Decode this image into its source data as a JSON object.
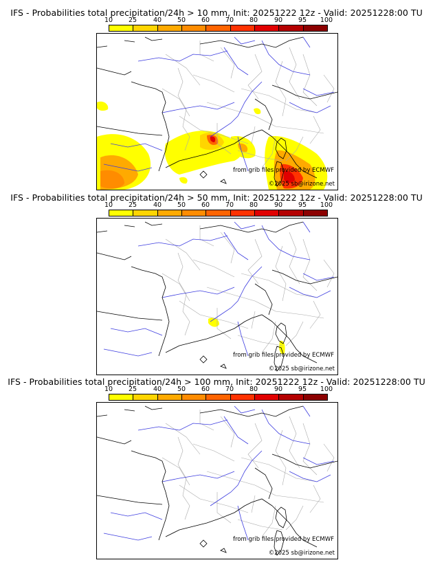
{
  "colorbar": {
    "ticks": [
      "10",
      "25",
      "40",
      "50",
      "60",
      "70",
      "80",
      "90",
      "95",
      "100"
    ],
    "colors": [
      "#ffff00",
      "#ffd500",
      "#ffaa00",
      "#ff8c00",
      "#ff6400",
      "#ff3200",
      "#e10000",
      "#b40000",
      "#8c0000",
      "#5a0000"
    ]
  },
  "panels": [
    {
      "title": "IFS - Probabilities total precipitation/24h > 10 mm, Init: 20251222 12z - Valid: 20251228:00 TU",
      "credit_source": "from grib files provided by ECMWF",
      "credit_copyright": "©2025 sb@irizone.net"
    },
    {
      "title": "IFS - Probabilities total precipitation/24h > 50 mm, Init: 20251222 12z - Valid: 20251228:00 TU",
      "credit_source": "from grib files provided by ECMWF",
      "credit_copyright": "©2025 sb@irizone.net"
    },
    {
      "title": "IFS - Probabilities total precipitation/24h > 100 mm, Init: 20251222 12z - Valid: 20251228:00 TU",
      "credit_source": "from grib files provided by ECMWF",
      "credit_copyright": "©2025 sb@irizone.net"
    }
  ]
}
